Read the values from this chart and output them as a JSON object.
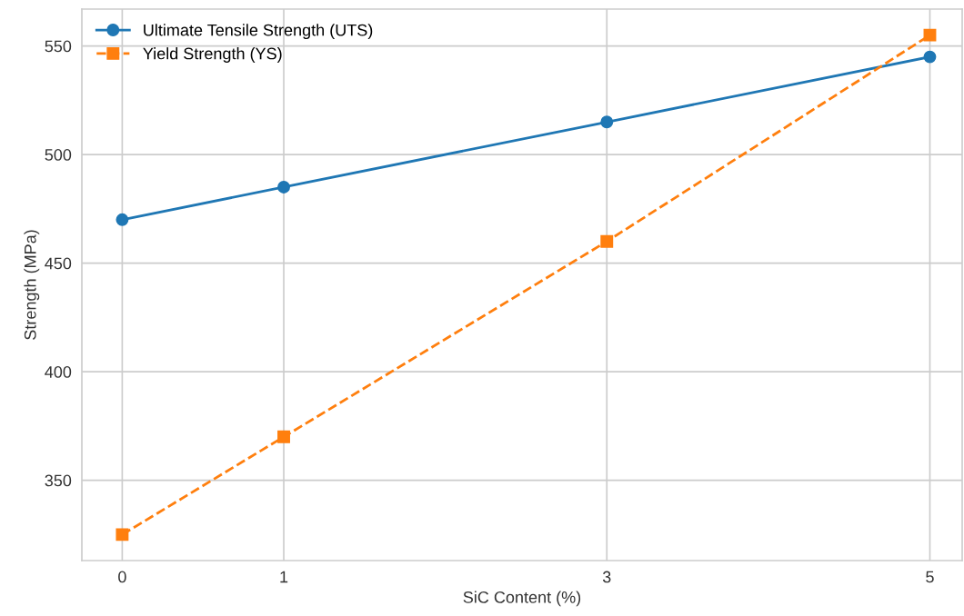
{
  "chart_data": {
    "type": "line",
    "xlabel": "SiC Content (%)",
    "ylabel": "Strength (MPa)",
    "x": [
      0,
      1,
      3,
      5
    ],
    "series": [
      {
        "name": "Ultimate Tensile Strength (UTS)",
        "color": "#1f77b4",
        "values": [
          470,
          485,
          515,
          545
        ],
        "marker": "circle",
        "line_style": "solid"
      },
      {
        "name": "Yield Strength (YS)",
        "color": "#ff7f0e",
        "values": [
          325,
          370,
          460,
          555
        ],
        "marker": "square",
        "line_style": "dashed"
      }
    ],
    "xlim": [
      -0.25,
      5.2
    ],
    "xticks": [
      0,
      1,
      3,
      5
    ],
    "ylim": [
      313,
      567
    ],
    "yticks": [
      350,
      400,
      450,
      500,
      550
    ],
    "grid": true,
    "legend": "top left"
  }
}
